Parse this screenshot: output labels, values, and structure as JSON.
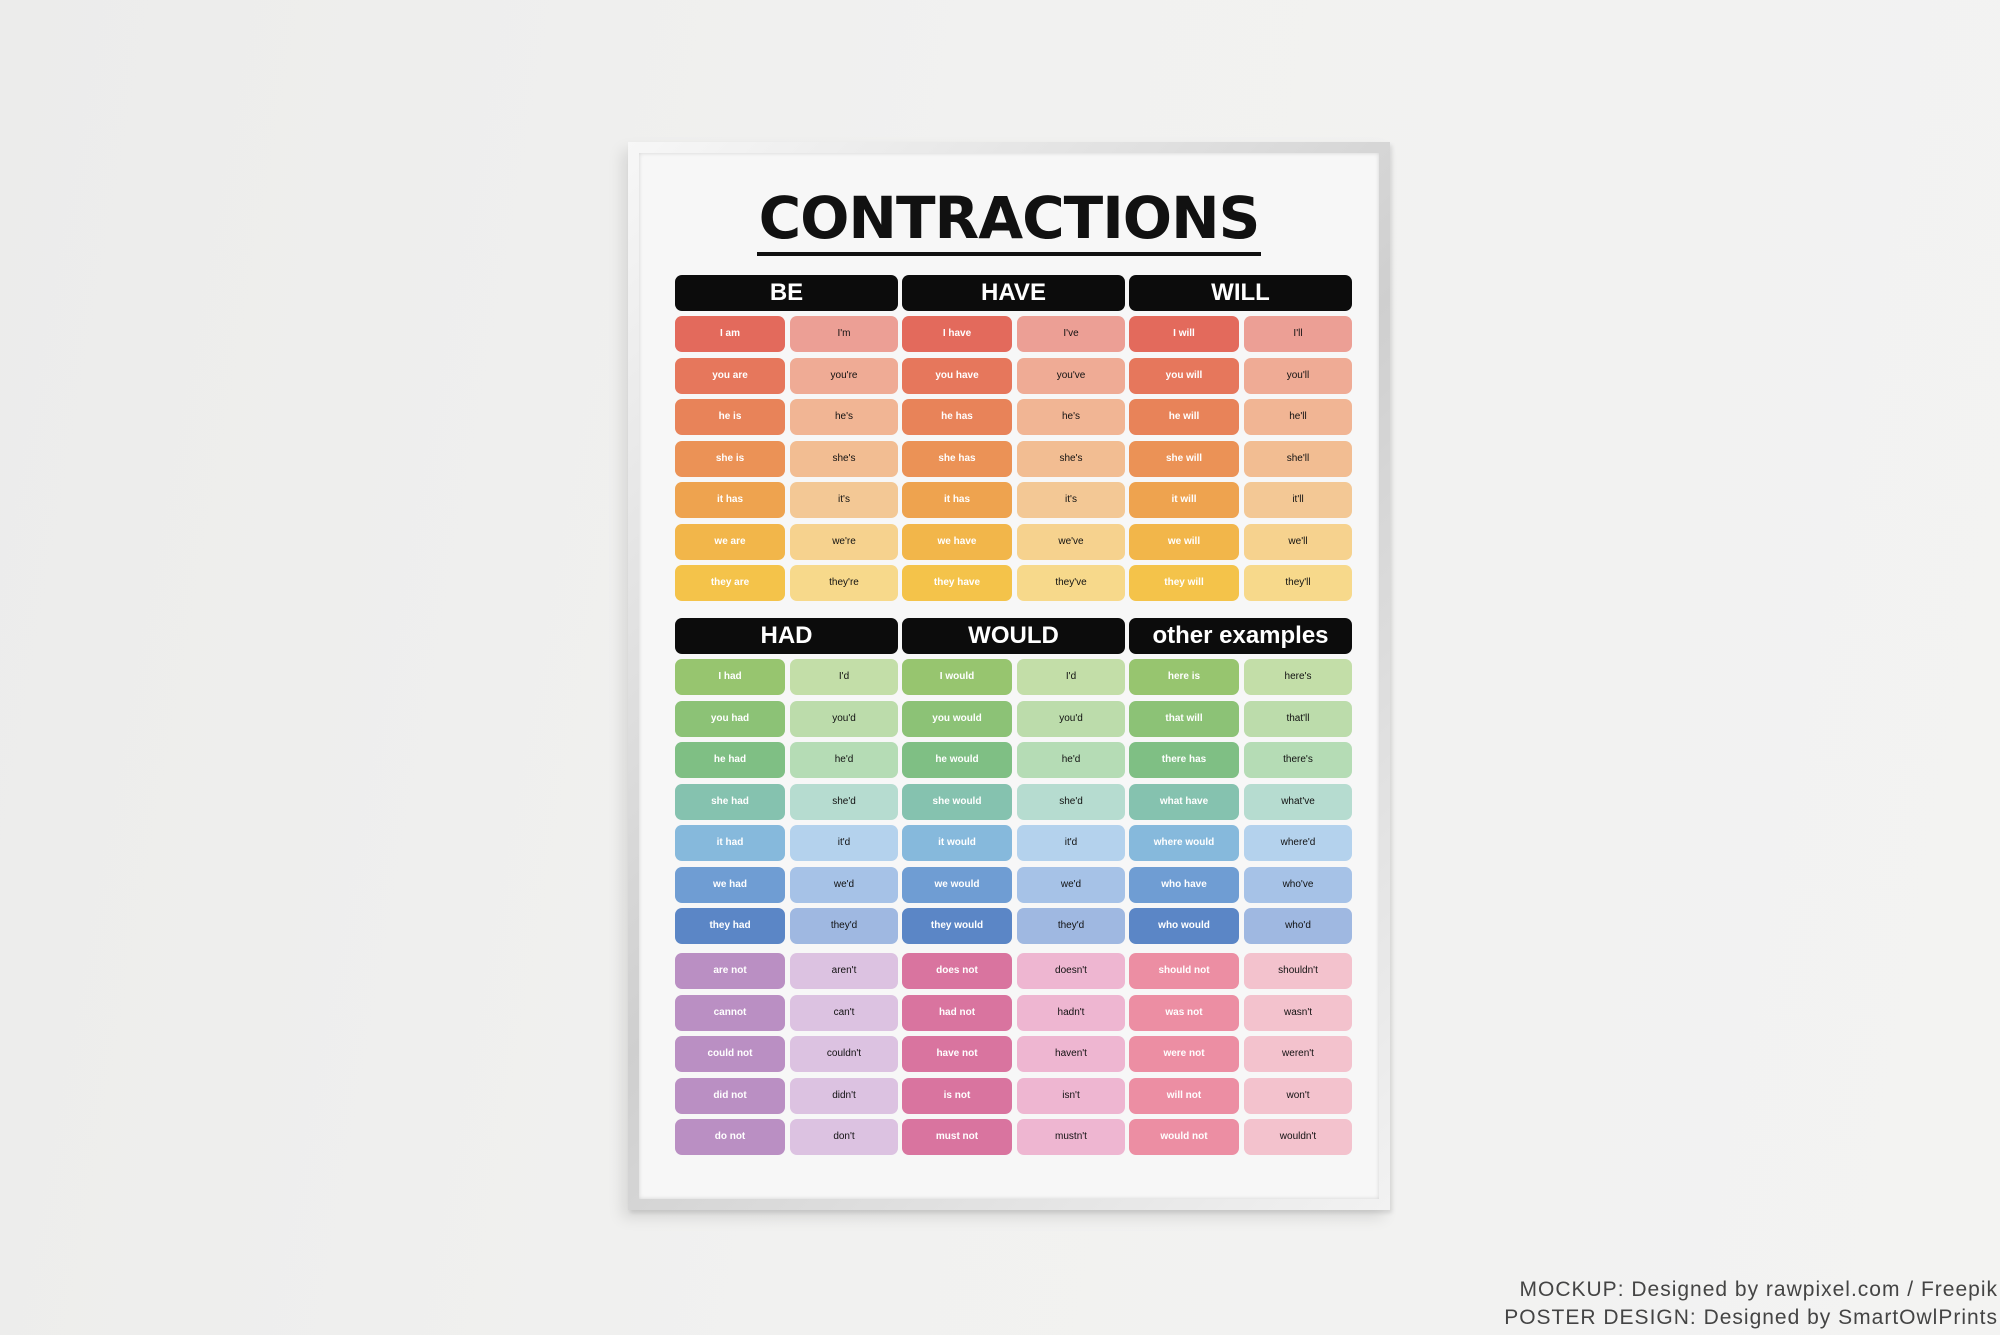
{
  "poster": {
    "title": "CONTRACTIONS",
    "sections": [
      {
        "headers": [
          "BE",
          "HAVE",
          "WILL"
        ],
        "left_colors": [
          "#e36a5c",
          "#e6775c",
          "#e88359",
          "#eb9256",
          "#eea34f",
          "#f2b64a",
          "#f4c34a"
        ],
        "right_colors": [
          "#ec9f95",
          "#efab95",
          "#f1b594",
          "#f2bd92",
          "#f3c895",
          "#f6d28e",
          "#f7d98b"
        ],
        "columns": [
          [
            [
              "I am",
              "I'm"
            ],
            [
              "you are",
              "you're"
            ],
            [
              "he is",
              "he's"
            ],
            [
              "she is",
              "she's"
            ],
            [
              "it has",
              "it's"
            ],
            [
              "we are",
              "we're"
            ],
            [
              "they are",
              "they're"
            ]
          ],
          [
            [
              "I have",
              "I've"
            ],
            [
              "you have",
              "you've"
            ],
            [
              "he has",
              "he's"
            ],
            [
              "she has",
              "she's"
            ],
            [
              "it has",
              "it's"
            ],
            [
              "we have",
              "we've"
            ],
            [
              "they have",
              "they've"
            ]
          ],
          [
            [
              "I will",
              "I'll"
            ],
            [
              "you will",
              "you'll"
            ],
            [
              "he will",
              "he'll"
            ],
            [
              "she will",
              "she'll"
            ],
            [
              "it will",
              "it'll"
            ],
            [
              "we will",
              "we'll"
            ],
            [
              "they will",
              "they'll"
            ]
          ]
        ]
      },
      {
        "headers": [
          "HAD",
          "WOULD",
          "other examples"
        ],
        "left_colors": [
          "#97c56f",
          "#8cc276",
          "#7fbf84",
          "#85c2af",
          "#86b9dc",
          "#6f9dd3",
          "#5b86c6"
        ],
        "right_colors": [
          "#c3dea8",
          "#bcdcab",
          "#b5dcb5",
          "#b6dcd0",
          "#b4d2ed",
          "#a6c2e7",
          "#9fb8e1"
        ],
        "columns": [
          [
            [
              "I had",
              "I'd"
            ],
            [
              "you had",
              "you'd"
            ],
            [
              "he had",
              "he'd"
            ],
            [
              "she had",
              "she'd"
            ],
            [
              "it had",
              "it'd"
            ],
            [
              "we had",
              "we'd"
            ],
            [
              "they had",
              "they'd"
            ]
          ],
          [
            [
              "I would",
              "I'd"
            ],
            [
              "you would",
              "you'd"
            ],
            [
              "he would",
              "he'd"
            ],
            [
              "she would",
              "she'd"
            ],
            [
              "it would",
              "it'd"
            ],
            [
              "we would",
              "we'd"
            ],
            [
              "they would",
              "they'd"
            ]
          ],
          [
            [
              "here is",
              "here's"
            ],
            [
              "that will",
              "that'll"
            ],
            [
              "there has",
              "there's"
            ],
            [
              "what have",
              "what've"
            ],
            [
              "where would",
              "where'd"
            ],
            [
              "who have",
              "who've"
            ],
            [
              "who would",
              "who'd"
            ]
          ]
        ]
      },
      {
        "headers": [],
        "column_left_colors": [
          "#ba8fc3",
          "#d9749f",
          "#ec8ea3"
        ],
        "column_right_colors": [
          "#dcc2e1",
          "#eeb6d1",
          "#f3c2cd"
        ],
        "columns": [
          [
            [
              "are not",
              "aren't"
            ],
            [
              "cannot",
              "can't"
            ],
            [
              "could not",
              "couldn't"
            ],
            [
              "did not",
              "didn't"
            ],
            [
              "do not",
              "don't"
            ]
          ],
          [
            [
              "does not",
              "doesn't"
            ],
            [
              "had not",
              "hadn't"
            ],
            [
              "have not",
              "haven't"
            ],
            [
              "is not",
              "isn't"
            ],
            [
              "must not",
              "mustn't"
            ]
          ],
          [
            [
              "should not",
              "shouldn't"
            ],
            [
              "was not",
              "wasn't"
            ],
            [
              "were not",
              "weren't"
            ],
            [
              "will not",
              "won't"
            ],
            [
              "would not",
              "wouldn't"
            ]
          ]
        ]
      }
    ]
  },
  "credits": {
    "line1": "MOCKUP: Designed by rawpixel.com / Freepik",
    "line2": "POSTER DESIGN: Designed by SmartOwlPrints"
  }
}
